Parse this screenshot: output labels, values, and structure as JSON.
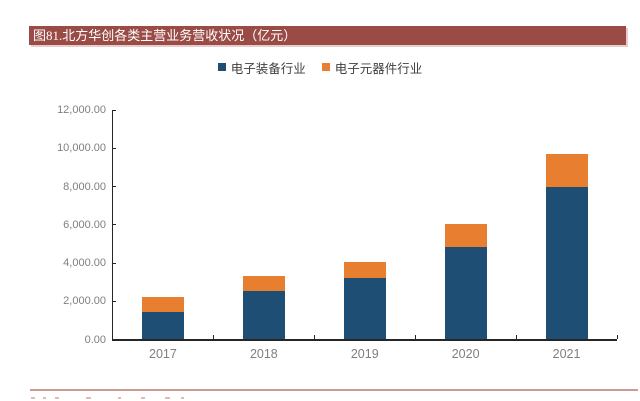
{
  "figure": {
    "title": "图81.北方华创各类主营业务营收状况（亿元）"
  },
  "chart_data": {
    "type": "bar",
    "stacked": true,
    "title": "图81.北方华创各类主营业务营收状况（亿元）",
    "categories": [
      "2017",
      "2018",
      "2019",
      "2020",
      "2021"
    ],
    "series": [
      {
        "name": "电子装备行业",
        "color": "#1F4E74",
        "values": [
          1424,
          2522,
          3193,
          4841,
          7949
        ]
      },
      {
        "name": "电子元器件行业",
        "color": "#E87E2F",
        "values": [
          785,
          796,
          861,
          1176,
          1733
        ]
      }
    ],
    "xlabel": "",
    "ylabel": "",
    "ylim": [
      0,
      12000
    ],
    "ytick_step": 2000,
    "ytick_labels": [
      "0.00",
      "2,000.00",
      "4,000.00",
      "6,000.00",
      "8,000.00",
      "10,000.00",
      "12,000.00"
    ],
    "legend_position": "top-center",
    "grid": false
  },
  "colors": {
    "title_bar_bg": "#9A4B45",
    "title_text": "#FFFFFF",
    "axis": "#262626",
    "tick_label": "#7F7F7F",
    "legend_text": "#404040",
    "divider": "#CF9A96"
  }
}
